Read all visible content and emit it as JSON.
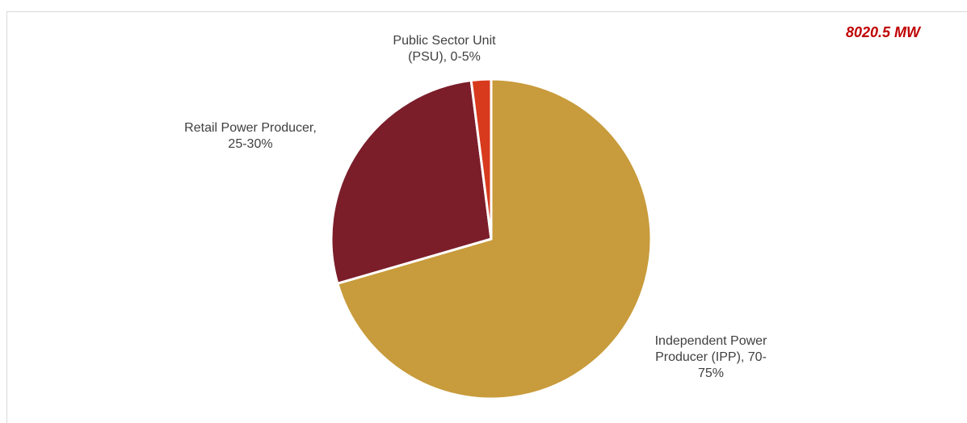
{
  "chart_data": {
    "type": "pie",
    "total_label": "8020.5 MW",
    "start_angle_deg": 0,
    "direction": "clockwise",
    "slices": [
      {
        "name": "Independent Power Producer (IPP)",
        "value": 70.5,
        "label_lines": [
          "Independent Power",
          "Producer (IPP), 70-",
          "75%"
        ],
        "color": "#c89b3c"
      },
      {
        "name": "Retail Power Producer",
        "value": 27.5,
        "label_lines": [
          "Retail Power Producer,",
          "25-30%"
        ],
        "color": "#7b1e2a"
      },
      {
        "name": "Public Sector Unit (PSU)",
        "value": 2.0,
        "label_lines": [
          "Public Sector Unit",
          "(PSU), 0-5%"
        ],
        "color": "#d83a1e"
      }
    ]
  }
}
